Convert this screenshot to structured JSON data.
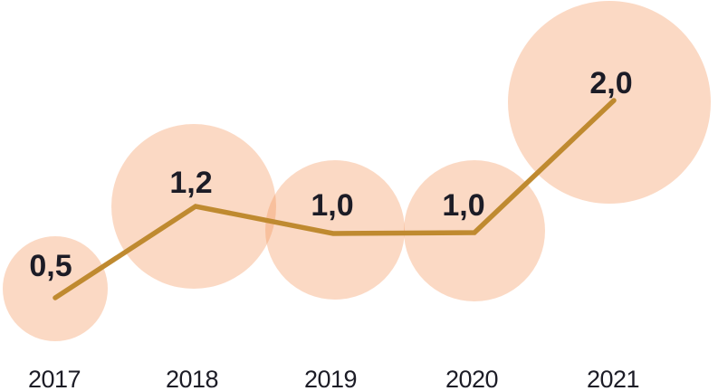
{
  "chart_data": {
    "type": "bubble-line",
    "title": "",
    "xlabel": "",
    "ylabel": "",
    "categories": [
      "2017",
      "2018",
      "2019",
      "2020",
      "2021"
    ],
    "values": [
      0.5,
      1.2,
      1.0,
      1.0,
      2.0
    ],
    "point_labels": [
      "0,5",
      "1,2",
      "1,0",
      "1,0",
      "2,0"
    ],
    "decimal_separator": ",",
    "ylim": [
      0,
      2.2
    ],
    "grid": false,
    "legend_position": "none",
    "colors": {
      "bubble_fill": "#F49256",
      "bubble_opacity": 0.35,
      "line": "#BF8A30",
      "value_text": "#1C1C26",
      "year_text": "#1C1C26",
      "background": "#FFFFFF"
    }
  }
}
